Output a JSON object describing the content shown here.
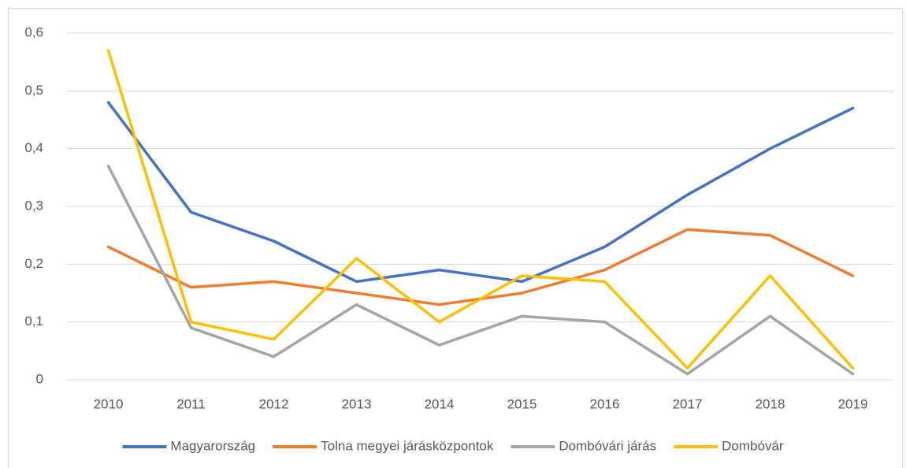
{
  "chart_data": {
    "type": "line",
    "categories": [
      "2010",
      "2011",
      "2012",
      "2013",
      "2014",
      "2015",
      "2016",
      "2017",
      "2018",
      "2019"
    ],
    "series": [
      {
        "name": "Magyarország",
        "color": "#4472c4",
        "values": [
          0.48,
          0.29,
          0.24,
          0.17,
          0.19,
          0.17,
          0.23,
          0.32,
          0.4,
          0.47
        ]
      },
      {
        "name": "Tolna megyei járásközpontok",
        "color": "#ed7d31",
        "values": [
          0.23,
          0.16,
          0.17,
          0.15,
          0.13,
          0.15,
          0.19,
          0.26,
          0.25,
          0.18
        ]
      },
      {
        "name": "Dombóvári járás",
        "color": "#a5a5a5",
        "values": [
          0.37,
          0.09,
          0.04,
          0.13,
          0.06,
          0.11,
          0.1,
          0.01,
          0.11,
          0.01
        ]
      },
      {
        "name": "Dombóvár",
        "color": "#ffc000",
        "values": [
          0.57,
          0.1,
          0.07,
          0.21,
          0.1,
          0.18,
          0.17,
          0.02,
          0.18,
          0.02
        ]
      }
    ],
    "ylim": [
      0,
      0.6
    ],
    "yticks": [
      0,
      {
        "value": 0.1,
        "label": "0,1"
      },
      {
        "value": 0.2,
        "label": "0,2"
      },
      {
        "value": 0.3,
        "label": "0,3"
      },
      {
        "value": 0.4,
        "label": "0,4"
      },
      {
        "value": 0.5,
        "label": "0,5"
      },
      {
        "value": 0.6,
        "label": "0,6"
      }
    ],
    "grid": true,
    "legend": "bottom"
  }
}
